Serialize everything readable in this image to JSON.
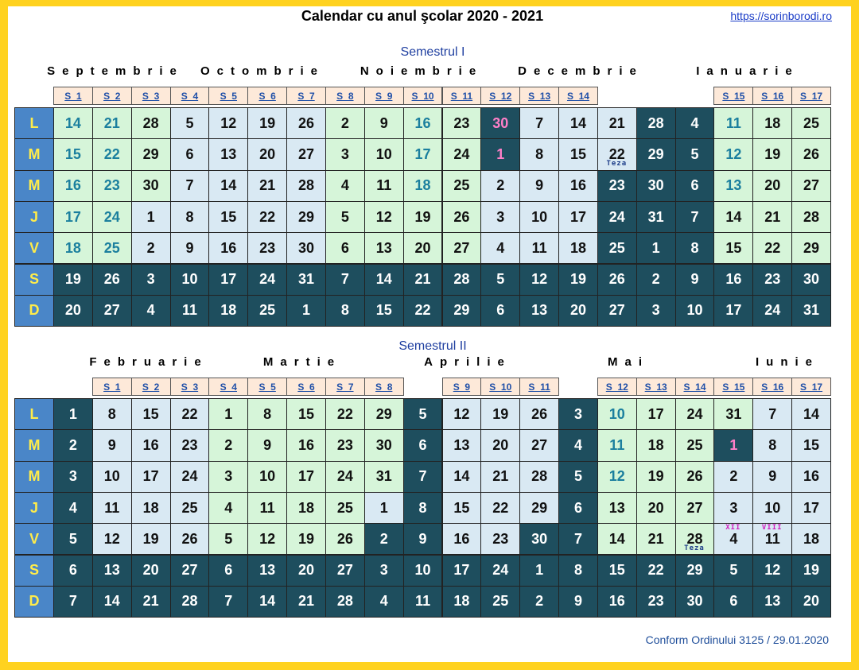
{
  "header": {
    "title": "Calendar cu anul şcolar 2020 - 2021",
    "url": "https://sorinborodi.ro"
  },
  "day_labels": [
    "L",
    "M",
    "M",
    "J",
    "V",
    "S",
    "D"
  ],
  "semesters": [
    {
      "title": "Semestrul I",
      "months": [
        "Septembrie",
        "Octombrie",
        "Noiembrie",
        "Decembrie",
        "Ianuarie"
      ],
      "month_colors": [
        "#d6f5d9",
        "#d9e9f3"
      ],
      "weeks": [
        "S_1",
        "S_2",
        "S_3",
        "S_4",
        "S_5",
        "S_6",
        "S_7",
        "S_8",
        "S_9",
        "S_10",
        "S_11",
        "S_12",
        "S_13",
        "S_14",
        null,
        null,
        null,
        "S_15",
        "S_16",
        "S_17"
      ],
      "rows": [
        [
          14,
          21,
          28,
          5,
          12,
          19,
          26,
          2,
          9,
          16,
          23,
          30,
          7,
          14,
          21,
          28,
          4,
          11,
          18,
          25
        ],
        [
          15,
          22,
          29,
          6,
          13,
          20,
          27,
          3,
          10,
          17,
          24,
          1,
          8,
          15,
          22,
          29,
          5,
          12,
          19,
          26
        ],
        [
          16,
          23,
          30,
          7,
          14,
          21,
          28,
          4,
          11,
          18,
          25,
          2,
          9,
          16,
          23,
          30,
          6,
          13,
          20,
          27
        ],
        [
          17,
          24,
          1,
          8,
          15,
          22,
          29,
          5,
          12,
          19,
          26,
          3,
          10,
          17,
          24,
          31,
          7,
          14,
          21,
          28
        ],
        [
          18,
          25,
          2,
          9,
          16,
          23,
          30,
          6,
          13,
          20,
          27,
          4,
          11,
          18,
          25,
          1,
          8,
          15,
          22,
          29
        ],
        [
          19,
          26,
          3,
          10,
          17,
          24,
          31,
          7,
          14,
          21,
          28,
          5,
          12,
          19,
          26,
          2,
          9,
          16,
          23,
          30
        ],
        [
          20,
          27,
          4,
          11,
          18,
          25,
          1,
          8,
          15,
          22,
          29,
          6,
          13,
          20,
          27,
          3,
          10,
          17,
          24,
          31
        ]
      ],
      "notes": [
        "Teza"
      ]
    },
    {
      "title": "Semestrul II",
      "months": [
        "Februarie",
        "Martie",
        "Aprilie",
        "Mai",
        "Iunie"
      ],
      "month_colors": [
        "#d9e9f3",
        "#d6f5d9"
      ],
      "weeks": [
        null,
        "S_1",
        "S_2",
        "S_3",
        "S_4",
        "S_5",
        "S_6",
        "S_7",
        "S_8",
        null,
        "S_9",
        "S_10",
        "S_11",
        null,
        "S_12",
        "S_13",
        "S_14",
        "S_15",
        "S_16",
        "S_17"
      ],
      "rows": [
        [
          1,
          8,
          15,
          22,
          1,
          8,
          15,
          22,
          29,
          5,
          12,
          19,
          26,
          3,
          10,
          17,
          24,
          31,
          7,
          14
        ],
        [
          2,
          9,
          16,
          23,
          2,
          9,
          16,
          23,
          30,
          6,
          13,
          20,
          27,
          4,
          11,
          18,
          25,
          1,
          8,
          15
        ],
        [
          3,
          10,
          17,
          24,
          3,
          10,
          17,
          24,
          31,
          7,
          14,
          21,
          28,
          5,
          12,
          19,
          26,
          2,
          9,
          16
        ],
        [
          4,
          11,
          18,
          25,
          4,
          11,
          18,
          25,
          1,
          8,
          15,
          22,
          29,
          6,
          13,
          20,
          27,
          3,
          10,
          17
        ],
        [
          5,
          12,
          19,
          26,
          5,
          12,
          19,
          26,
          2,
          9,
          16,
          23,
          30,
          7,
          14,
          21,
          28,
          4,
          11,
          18
        ],
        [
          6,
          13,
          20,
          27,
          6,
          13,
          20,
          27,
          3,
          10,
          17,
          24,
          1,
          8,
          15,
          22,
          29,
          5,
          12,
          19
        ],
        [
          7,
          14,
          21,
          28,
          7,
          14,
          21,
          28,
          4,
          11,
          18,
          25,
          2,
          9,
          16,
          23,
          30,
          6,
          13,
          20
        ]
      ],
      "notes": [
        "Teza",
        "XII",
        "VIII"
      ]
    }
  ],
  "footer": "Conform Ordinului 3125 / 29.01.2020"
}
